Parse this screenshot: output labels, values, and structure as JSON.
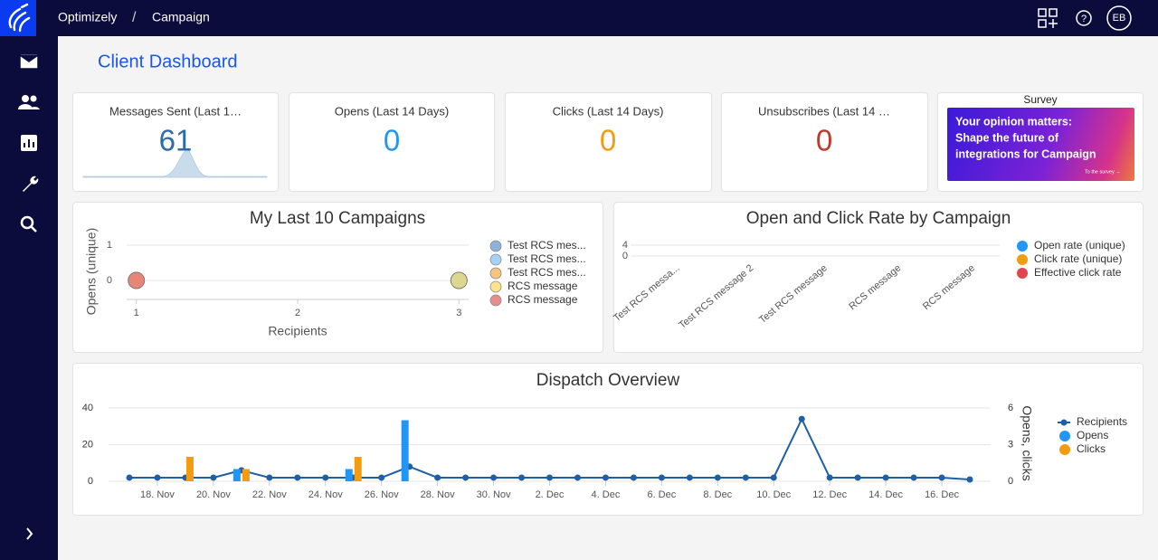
{
  "header": {
    "brand": "Optimizely",
    "separator": "/",
    "breadcrumb": "Campaign",
    "avatar": "EB"
  },
  "page_title": "Client Dashboard",
  "kpis": [
    {
      "label": "Messages Sent (Last 1…",
      "value": 61,
      "color": "#2c6aa8"
    },
    {
      "label": "Opens (Last 14 Days)",
      "value": 0,
      "color": "#2196f3"
    },
    {
      "label": "Clicks (Last 14 Days)",
      "value": 0,
      "color": "#f39c12"
    },
    {
      "label": "Unsubscribes (Last 14 …",
      "value": 0,
      "color": "#c0392b"
    }
  ],
  "survey": {
    "title": "Survey",
    "lines": [
      "Your opinion matters:",
      "Shape the future of",
      "integrations for Campaign"
    ],
    "link": "To the survey →"
  },
  "chart_data": [
    {
      "type": "scatter",
      "title": "My Last 10 Campaigns",
      "x_label": "Recipients",
      "y_label": "Opens (unique)",
      "xlim": [
        0.94,
        3.06
      ],
      "xticks": [
        1,
        2,
        3
      ],
      "ylim": [
        -0.54,
        1.23
      ],
      "yticks": [
        0,
        1
      ],
      "grid": true,
      "series": [
        {
          "name": "Test RCS mes...",
          "color": "#6f9fcf",
          "x": [
            3
          ],
          "values": [
            0
          ]
        },
        {
          "name": "Test RCS mes...",
          "color": "#8ec8f5",
          "x": [
            3
          ],
          "values": [
            0
          ]
        },
        {
          "name": "Test RCS mes...",
          "color": "#f9b45f",
          "x": [
            1
          ],
          "values": [
            0
          ]
        },
        {
          "name": "RCS message",
          "color": "#f7dc6f",
          "x": [
            3
          ],
          "values": [
            0
          ]
        },
        {
          "name": "RCS message",
          "color": "#e07070",
          "x": [
            1
          ],
          "values": [
            0
          ]
        }
      ]
    },
    {
      "type": "bar",
      "title": "Open and Click Rate by Campaign",
      "categories": [
        "Test RCS messa...",
        "Test RCS message 2",
        "Test RCS message",
        "RCS message",
        "RCS message"
      ],
      "ylim": [
        0,
        4
      ],
      "yticks": [
        0,
        4
      ],
      "grid": true,
      "series": [
        {
          "name": "Open rate (unique)",
          "color": "#2196f3",
          "values": [
            0,
            0,
            0,
            0,
            0
          ]
        },
        {
          "name": "Click rate (unique)",
          "color": "#f39c12",
          "values": [
            0,
            0,
            0,
            0,
            0
          ]
        },
        {
          "name": "Effective click rate",
          "color": "#e0464e",
          "values": [
            0,
            0,
            0,
            0,
            0
          ]
        }
      ]
    },
    {
      "type": "combo",
      "title": "Dispatch Overview",
      "y2_label": "Opens, clicks",
      "categories": [
        null,
        "18. Nov",
        null,
        "20. Nov",
        null,
        "22. Nov",
        null,
        "24. Nov",
        null,
        "26. Nov",
        null,
        "28. Nov",
        null,
        "30. Nov",
        null,
        "2. Dec",
        null,
        "4. Dec",
        null,
        "6. Dec",
        null,
        "8. Dec",
        null,
        "10. Dec",
        null,
        "12. Dec",
        null,
        "14. Dec",
        null,
        "16. Dec",
        null
      ],
      "ylim": [
        0,
        40
      ],
      "yticks": [
        0,
        20,
        40
      ],
      "y2lim": [
        0,
        6
      ],
      "y2ticks": [
        0,
        3,
        6
      ],
      "grid": true,
      "series": [
        {
          "name": "Recipients",
          "type": "line",
          "color": "#1f5fa6",
          "values": [
            2,
            2,
            2,
            2,
            6,
            2,
            2,
            2,
            2,
            2,
            8,
            2,
            2,
            2,
            2,
            2,
            2,
            2,
            2,
            2,
            2,
            2,
            2,
            2,
            34,
            2,
            2,
            2,
            2,
            2,
            1
          ]
        },
        {
          "name": "Opens",
          "type": "bar",
          "axis": "y2",
          "color": "#2196f3",
          "values": [
            0,
            0,
            0,
            0,
            1,
            0,
            0,
            0,
            1,
            0,
            5,
            0,
            0,
            0,
            0,
            0,
            0,
            0,
            0,
            0,
            0,
            0,
            0,
            0,
            0,
            0,
            0,
            0,
            0,
            0,
            0
          ]
        },
        {
          "name": "Clicks",
          "type": "bar",
          "axis": "y2",
          "color": "#f39c12",
          "values": [
            0,
            0,
            2,
            0,
            1,
            0,
            0,
            0,
            2,
            0,
            0,
            0,
            0,
            0,
            0,
            0,
            0,
            0,
            0,
            0,
            0,
            0,
            0,
            0,
            0,
            0,
            0,
            0,
            0,
            0,
            0
          ]
        }
      ]
    }
  ]
}
